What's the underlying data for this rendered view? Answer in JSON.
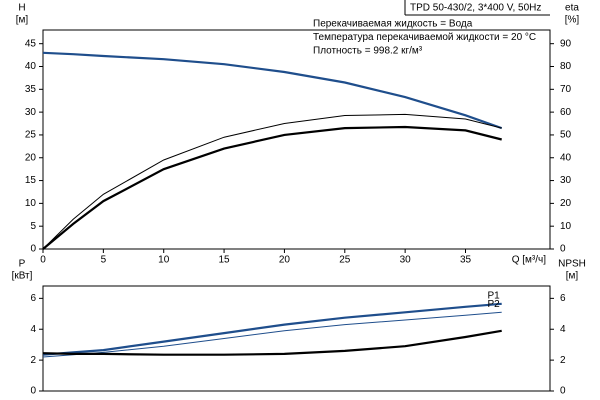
{
  "chart_data": [
    {
      "type": "line",
      "title": "TPD 50-430/2, 3*400 V, 50Hz",
      "annotations": [
        "Перекачиваемая жидкость = Вода",
        "Температура перекачиваемой жидкости = 20 °C",
        "Плотность = 998.2 кг/м³"
      ],
      "ylabel": "H",
      "yunit": "[м]",
      "y2label": "eta",
      "y2unit": "[%]",
      "xlabel": "Q [м³/ч]",
      "x": [
        0,
        2.5,
        5,
        10,
        15,
        20,
        25,
        30,
        35,
        38
      ],
      "xlim": [
        0,
        42
      ],
      "xticks": [
        0,
        5,
        10,
        15,
        20,
        25,
        30,
        35
      ],
      "ylim": [
        0,
        48
      ],
      "yticks": [
        0,
        5,
        10,
        15,
        20,
        25,
        30,
        35,
        40,
        45
      ],
      "y2lim": [
        0,
        96
      ],
      "y2ticks": [
        0,
        10,
        20,
        30,
        40,
        50,
        60,
        70,
        80,
        90
      ],
      "grid": false,
      "series": [
        {
          "color": "#1f4e8c",
          "linewidth": 2.2,
          "values": [
            43,
            42.7,
            42.3,
            41.6,
            40.5,
            38.8,
            36.5,
            33.3,
            29.3,
            26.5
          ]
        },
        {
          "color": "#000000",
          "linewidth": 1,
          "axis": "y2",
          "values": [
            0,
            13,
            24,
            39,
            49,
            55,
            58.5,
            59,
            57,
            53
          ]
        },
        {
          "color": "#000000",
          "linewidth": 2.2,
          "axis": "y2",
          "values": [
            0,
            11,
            21,
            35,
            44,
            50,
            53,
            53.5,
            52,
            48
          ]
        }
      ]
    },
    {
      "type": "line",
      "ylabel": "P",
      "yunit": "[кВт]",
      "y2label": "NPSH",
      "y2unit": "[м]",
      "x": [
        0,
        2.5,
        5,
        10,
        15,
        20,
        25,
        30,
        35,
        38
      ],
      "xlim": [
        0,
        42
      ],
      "ylim": [
        0,
        6.8
      ],
      "yticks": [
        0,
        2,
        4,
        6
      ],
      "y2lim": [
        0,
        6.8
      ],
      "y2ticks": [
        0,
        2,
        4,
        6
      ],
      "grid": false,
      "series": [
        {
          "name": "P1",
          "color": "#1f4e8c",
          "linewidth": 2.2,
          "values": [
            2.35,
            2.5,
            2.65,
            3.2,
            3.75,
            4.3,
            4.75,
            5.1,
            5.45,
            5.65
          ]
        },
        {
          "name": "P2",
          "color": "#1f4e8c",
          "linewidth": 1,
          "values": [
            2.2,
            2.35,
            2.5,
            2.9,
            3.4,
            3.9,
            4.3,
            4.6,
            4.9,
            5.1
          ]
        },
        {
          "color": "#000000",
          "linewidth": 2.2,
          "axis": "y2",
          "values": [
            2.45,
            2.4,
            2.4,
            2.35,
            2.35,
            2.4,
            2.6,
            2.9,
            3.5,
            3.9
          ]
        }
      ]
    }
  ]
}
